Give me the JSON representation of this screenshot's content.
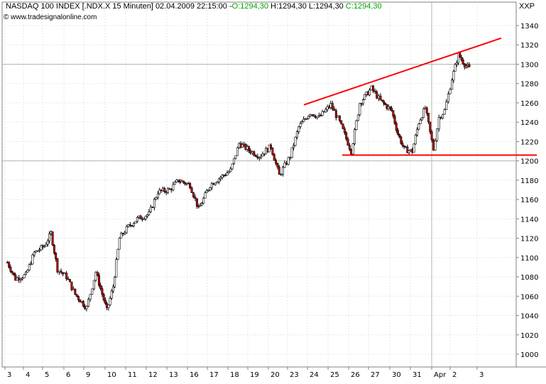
{
  "header": {
    "name": "NASDAQ 100 INDEX [.NDX.X  15 Minuten]",
    "datetime": "02.04.2009 22:15:00",
    "open": "O:1294,30",
    "hl": "H:1294,30 L:1294,30",
    "close": "C:1294,30",
    "source": "© www.tradesignalonline.com",
    "unit_label": "XXP"
  },
  "colors": {
    "up_candle": "#ffffff",
    "down_candle": "#c00000",
    "candle_outline": "#000000",
    "trendline": "#ff0000",
    "grid": "#cfd8cf",
    "axis": "#808080",
    "green_text": "#00a000"
  },
  "chart_data": {
    "type": "candlestick",
    "title": "NASDAQ 100 INDEX [.NDX.X  15 Minuten]",
    "y_axis_position": "right",
    "ylim": [
      990,
      1350
    ],
    "yticks": [
      1000,
      1020,
      1040,
      1060,
      1080,
      1100,
      1120,
      1140,
      1160,
      1180,
      1200,
      1220,
      1240,
      1260,
      1280,
      1300,
      1320,
      1340
    ],
    "xticks": [
      "3",
      "4",
      "5",
      "6",
      "9",
      "10",
      "11",
      "12",
      "13",
      "16",
      "17",
      "18",
      "19",
      "20",
      "23",
      "24",
      "25",
      "26",
      "27",
      "30",
      "31",
      "Apr",
      "2",
      "3"
    ],
    "grid": true,
    "highlight_gridlines_y": [
      1200,
      1300
    ],
    "highlight_gridlines_x": [
      "Apr"
    ],
    "price_path": [
      [
        "3",
        1095
      ],
      [
        "3",
        1078
      ],
      [
        "4",
        1082
      ],
      [
        "4",
        1105
      ],
      [
        "5",
        1112
      ],
      [
        "5",
        1125
      ],
      [
        "5",
        1088
      ],
      [
        "6",
        1080
      ],
      [
        "6",
        1062
      ],
      [
        "9",
        1048
      ],
      [
        "9",
        1085
      ],
      [
        "10",
        1045
      ],
      [
        "10",
        1070
      ],
      [
        "10",
        1120
      ],
      [
        "11",
        1132
      ],
      [
        "11",
        1140
      ],
      [
        "12",
        1145
      ],
      [
        "12",
        1168
      ],
      [
        "13",
        1170
      ],
      [
        "13",
        1180
      ],
      [
        "16",
        1175
      ],
      [
        "16",
        1150
      ],
      [
        "17",
        1175
      ],
      [
        "17",
        1182
      ],
      [
        "18",
        1190
      ],
      [
        "18",
        1218
      ],
      [
        "19",
        1210
      ],
      [
        "19",
        1205
      ],
      [
        "20",
        1215
      ],
      [
        "20",
        1185
      ],
      [
        "23",
        1205
      ],
      [
        "23",
        1235
      ],
      [
        "24",
        1250
      ],
      [
        "24",
        1245
      ],
      [
        "25",
        1258
      ],
      [
        "25",
        1240
      ],
      [
        "26",
        1210
      ],
      [
        "26",
        1260
      ],
      [
        "27",
        1275
      ],
      [
        "27",
        1262
      ],
      [
        "30",
        1252
      ],
      [
        "30",
        1228
      ],
      [
        "30",
        1212
      ],
      [
        "31",
        1210
      ],
      [
        "31",
        1240
      ],
      [
        "31",
        1255
      ],
      [
        "Apr",
        1212
      ],
      [
        "Apr",
        1245
      ],
      [
        "Apr",
        1252
      ],
      [
        "2",
        1285
      ],
      [
        "2",
        1310
      ],
      [
        "2",
        1300
      ],
      [
        "2",
        1294
      ]
    ],
    "trendlines": [
      {
        "from": [
          "24",
          1258
        ],
        "to": [
          "3",
          1327
        ]
      },
      {
        "from": [
          "26",
          1206
        ],
        "to": [
          "3",
          1206
        ]
      }
    ]
  }
}
